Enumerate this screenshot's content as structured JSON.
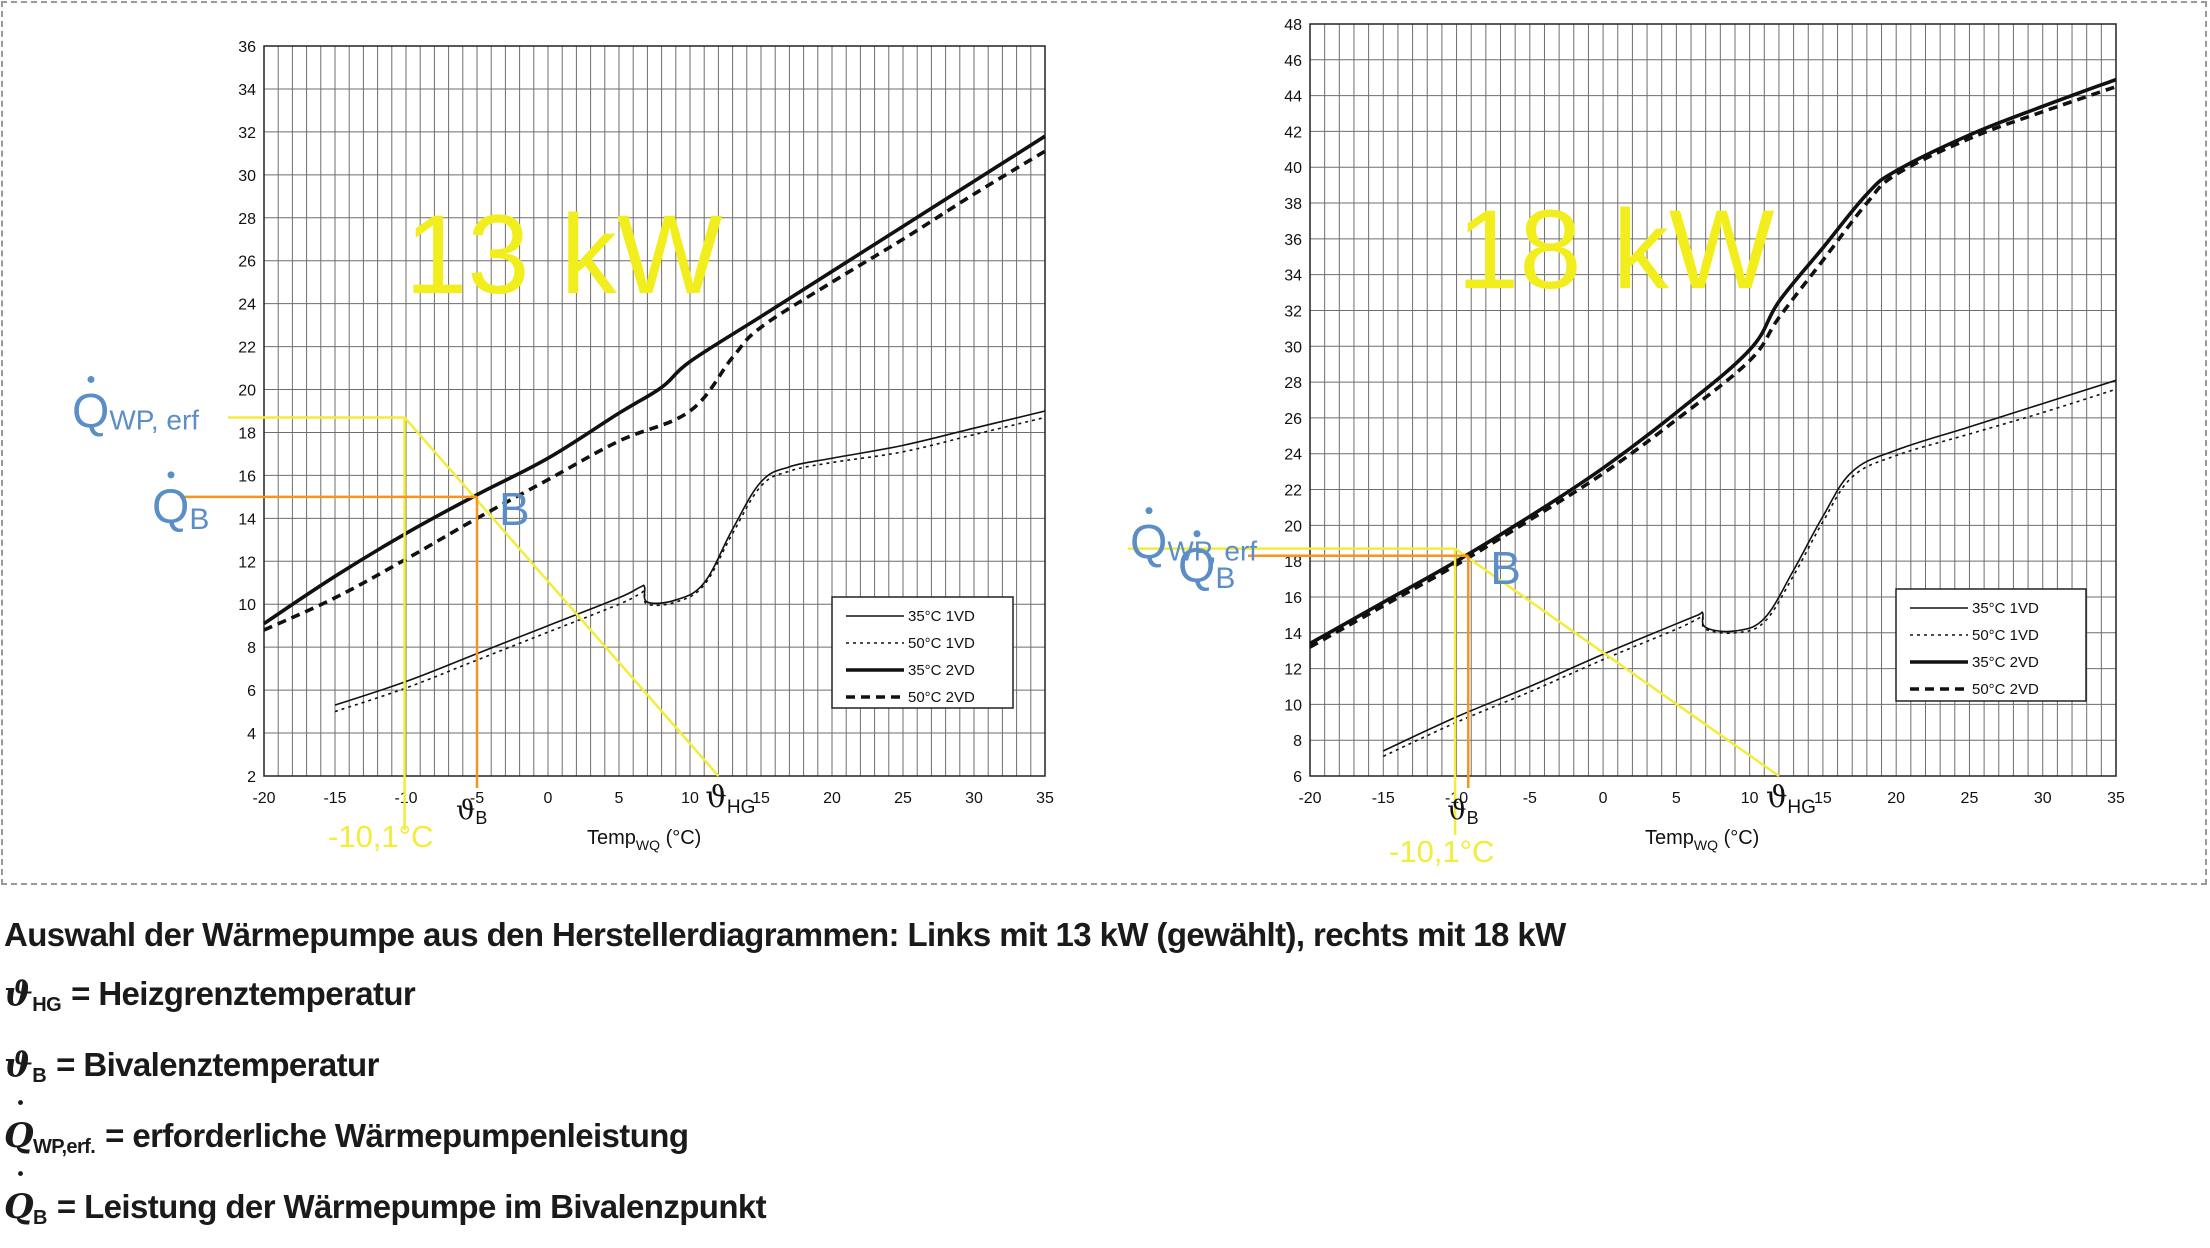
{
  "chart_data": [
    {
      "type": "line",
      "title": "13 kW",
      "xlabel_main": "Temp",
      "xlabel_sub": "WQ",
      "xlabel_unit": " (°C)",
      "xlim": [
        -20,
        35
      ],
      "ylim": [
        2,
        36
      ],
      "xticks": [
        -20,
        -15,
        -10,
        -5,
        0,
        5,
        10,
        15,
        20,
        25,
        30,
        35
      ],
      "xtick_labels": [
        "-20",
        "-15",
        "-10",
        "-5",
        "0",
        "5",
        "10",
        "15",
        "20",
        "25",
        "30",
        "35"
      ],
      "yticks": [
        2,
        4,
        6,
        8,
        10,
        12,
        14,
        16,
        18,
        20,
        22,
        24,
        26,
        28,
        30,
        32,
        34,
        36
      ],
      "grid": true,
      "legend_position": "bottom-right",
      "series": [
        {
          "name": "35°C 1VD",
          "style": "thin-solid",
          "x": [
            -15,
            -10,
            -5,
            0,
            5,
            6.5,
            6.8,
            7,
            9,
            11,
            13,
            15,
            17,
            20,
            25,
            30,
            35
          ],
          "y": [
            5.3,
            6.4,
            7.7,
            9.0,
            10.3,
            10.8,
            10.8,
            10.1,
            10.2,
            11.0,
            13.5,
            15.7,
            16.4,
            16.8,
            17.4,
            18.2,
            19.0
          ]
        },
        {
          "name": "50°C 1VD",
          "style": "thin-dotted",
          "x": [
            -15,
            -10,
            -5,
            0,
            5,
            6.5,
            6.8,
            7,
            9,
            11,
            13,
            15,
            17,
            20,
            25,
            30,
            35
          ],
          "y": [
            5.0,
            6.1,
            7.4,
            8.7,
            10.0,
            10.5,
            10.6,
            10.0,
            10.1,
            10.9,
            13.3,
            15.5,
            16.2,
            16.6,
            17.1,
            17.9,
            18.7
          ]
        },
        {
          "name": "35°C 2VD",
          "style": "thick-solid",
          "x": [
            -20,
            -15,
            -10,
            -5,
            0,
            5,
            8,
            10,
            15,
            20,
            25,
            30,
            35
          ],
          "y": [
            9.1,
            11.3,
            13.3,
            15.1,
            16.8,
            18.9,
            20.1,
            21.3,
            23.4,
            25.5,
            27.6,
            29.7,
            31.8
          ]
        },
        {
          "name": "50°C 2VD",
          "style": "thick-dashed",
          "x": [
            -20,
            -15,
            -10,
            -5,
            0,
            5,
            10,
            13,
            15,
            20,
            25,
            30,
            35
          ],
          "y": [
            8.8,
            10.3,
            12.1,
            14.0,
            15.8,
            17.6,
            19.0,
            21.5,
            22.9,
            25.0,
            27.0,
            29.1,
            31.1
          ]
        }
      ],
      "annotations": {
        "big_label": "13 kW",
        "q_wp_label": "Q",
        "q_wp_sub": "WP, erf",
        "q_b_label": "Q",
        "q_b_sub": "B",
        "b_label": "B",
        "theta_b_label": "ϑ",
        "theta_b_sub": "B",
        "theta_hg_label": "ϑ",
        "theta_hg_sub": "HG",
        "temp_label": "-10,1°C",
        "q_wp_value": 18.7,
        "q_b_value": 15.0,
        "bivalent_temp": -5,
        "design_temp": -10.1,
        "heizgrenz_temp": 12,
        "line_heizgrenz_y": 2
      }
    },
    {
      "type": "line",
      "title": "18 kW",
      "xlabel_main": "Temp",
      "xlabel_sub": "WQ",
      "xlabel_unit": " (°C)",
      "xlim": [
        -20,
        35
      ],
      "ylim": [
        6,
        48
      ],
      "xticks": [
        -20,
        -15,
        -10,
        -5,
        0,
        5,
        10,
        15,
        20,
        25,
        30,
        35
      ],
      "xtick_labels": [
        "-20",
        "-15",
        "-10",
        "-5",
        "0",
        "5",
        "10",
        "15",
        "20",
        "25",
        "30",
        "35"
      ],
      "yticks": [
        6,
        8,
        10,
        12,
        14,
        16,
        18,
        20,
        22,
        24,
        26,
        28,
        30,
        32,
        34,
        36,
        38,
        40,
        42,
        44,
        46,
        48
      ],
      "grid": true,
      "legend_position": "bottom-right",
      "series": [
        {
          "name": "35°C 1VD",
          "style": "thin-solid",
          "x": [
            -15,
            -10,
            -5,
            0,
            5,
            6.5,
            6.8,
            7,
            9,
            11,
            13,
            15,
            17,
            20,
            25,
            30,
            35
          ],
          "y": [
            7.4,
            9.3,
            11.0,
            12.8,
            14.5,
            15.0,
            15.1,
            14.3,
            14.1,
            14.8,
            17.5,
            20.5,
            23.0,
            24.2,
            25.5,
            26.8,
            28.1
          ]
        },
        {
          "name": "50°C 1VD",
          "style": "thin-dotted",
          "x": [
            -15,
            -10,
            -5,
            0,
            5,
            6.5,
            6.8,
            7,
            9,
            11,
            13,
            15,
            17,
            20,
            25,
            30,
            35
          ],
          "y": [
            7.1,
            9.0,
            10.7,
            12.5,
            14.2,
            14.8,
            14.9,
            14.2,
            14.0,
            14.6,
            17.2,
            20.2,
            22.7,
            23.9,
            25.1,
            26.3,
            27.6
          ]
        },
        {
          "name": "35°C 2VD",
          "style": "thick-solid",
          "x": [
            -20,
            -15,
            -10,
            -5,
            0,
            5,
            10,
            12,
            15,
            18,
            20,
            25,
            30,
            35
          ],
          "y": [
            13.4,
            15.7,
            18.0,
            20.5,
            23.2,
            26.3,
            29.8,
            32.5,
            35.5,
            38.5,
            39.8,
            41.8,
            43.4,
            44.9
          ]
        },
        {
          "name": "50°C 2VD",
          "style": "thick-dashed",
          "x": [
            -20,
            -15,
            -10,
            -5,
            0,
            5,
            10,
            12,
            15,
            18,
            20,
            25,
            30,
            35
          ],
          "y": [
            13.2,
            15.5,
            17.8,
            20.3,
            22.9,
            25.9,
            29.2,
            31.6,
            34.8,
            38.0,
            39.6,
            41.6,
            43.1,
            44.5
          ]
        }
      ],
      "annotations": {
        "big_label": "18 kW",
        "q_wp_label": "Q",
        "q_wp_sub": "WP, erf",
        "q_b_label": "Q",
        "q_b_sub": "B",
        "b_label": "B",
        "theta_b_label": "ϑ",
        "theta_b_sub": "B",
        "theta_hg_label": "ϑ",
        "theta_hg_sub": "HG",
        "temp_label": "-10,1°C",
        "q_wp_value": 18.7,
        "q_b_value": 18.3,
        "bivalent_temp": -9.2,
        "design_temp": -10.1,
        "heizgrenz_temp": 12,
        "line_heizgrenz_y": 6
      }
    }
  ],
  "colors": {
    "yellow": "#f2ee1d",
    "yellow_line": "#f3ec3a",
    "orange": "#f7931e",
    "blue": "#5b8ec6",
    "grid": "#6e6e6e",
    "curve": "#111111"
  },
  "caption": {
    "line1": "Auswahl der Wärmepumpe aus den Herstellerdiagrammen: Links mit 13 kW (gewählt), rechts mit 18 kW",
    "hg_symbol": "ϑ",
    "hg_sub": "HG",
    "hg_text": "= Heizgrenztemperatur",
    "b_symbol": "ϑ",
    "b_sub": "B",
    "b_text": "= Bivalenztemperatur",
    "qwp_symbol": "Q",
    "qwp_sub": "WP,erf.",
    "qwp_text": "= erforderliche Wärmepumpenleistung",
    "qb_symbol": "Q",
    "qb_sub": "B",
    "qb_text": "= Leistung der  Wärmepumpe im Bivalenzpunkt"
  }
}
